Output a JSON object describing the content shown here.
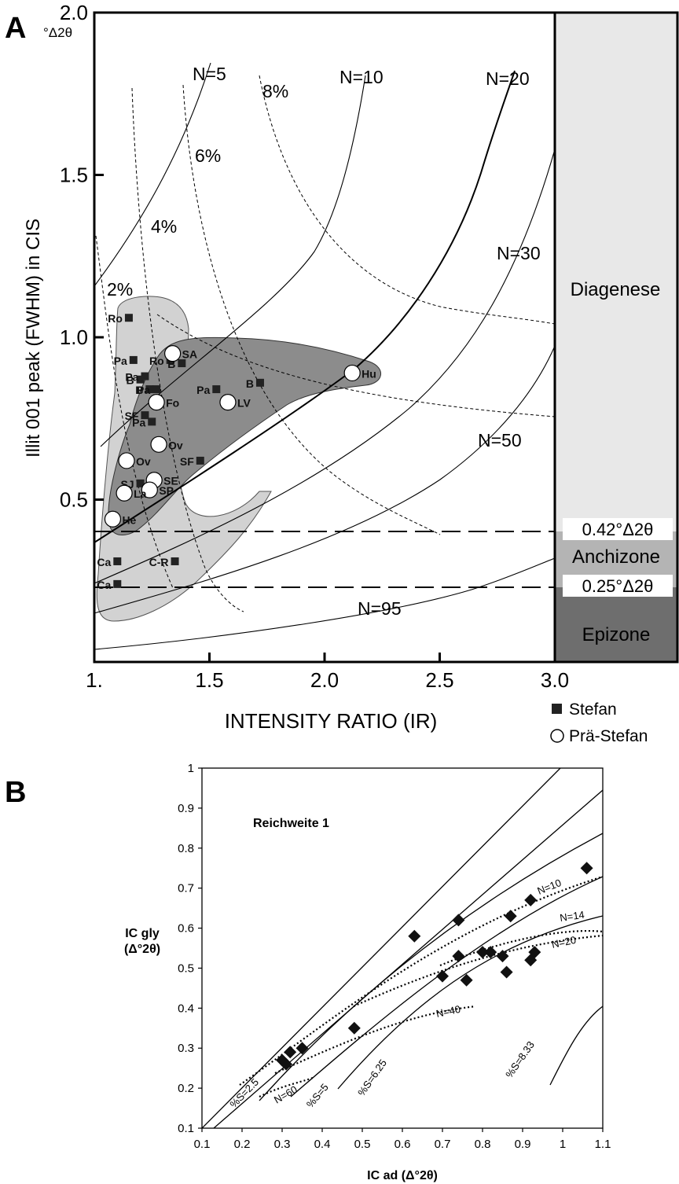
{
  "panel_a": {
    "letter": "A",
    "ylabel": "Illit 001 peak (FWHM) in CIS",
    "yunit": "°Δ2θ",
    "xlabel": "INTENSITY RATIO (IR)",
    "zones": [
      {
        "label": "Diagenese",
        "color": "#e8e8e8"
      },
      {
        "label": "Anchizone",
        "color": "#b4b4b4"
      },
      {
        "label": "Epizone",
        "color": "#6e6e6e"
      }
    ],
    "threshold_labels": [
      "0.42°Δ2θ",
      "0.25°Δ2θ"
    ],
    "curve_labels": [
      "N=5",
      "N=10",
      "N=20",
      "N=30",
      "N=50",
      "N=95"
    ],
    "percent_labels": [
      "2%",
      "4%",
      "6%",
      "8%"
    ],
    "legend": [
      {
        "symbol": "square",
        "label": "Stefan"
      },
      {
        "symbol": "circle",
        "label": "Prä-Stefan"
      }
    ]
  },
  "panel_b": {
    "letter": "B",
    "annotation": "Reichweite 1",
    "ylabel_line1": "IC gly",
    "ylabel_line2": "(Δ°2θ)",
    "xlabel": "IC ad (Δ°2θ)",
    "curve_labels": [
      "N=10",
      "N=14",
      "N=20",
      "N=40",
      "N=60",
      "%S=2.5",
      "%S=5",
      "%S=6.25",
      "%S=8.33"
    ]
  },
  "chart_data": [
    {
      "type": "scatter",
      "xlim": [
        1.0,
        3.0
      ],
      "ylim": [
        0.0,
        2.0
      ],
      "x_ticks": [
        "1.",
        "1.5",
        "2.0",
        "2.5",
        "3.0"
      ],
      "y_ticks": [
        "2.0",
        "1.5",
        "1.0",
        "0.5"
      ],
      "thresholds_y": [
        0.42,
        0.25
      ],
      "series": [
        {
          "name": "Stefan",
          "marker": "square",
          "points": [
            {
              "x": 1.15,
              "y": 1.06,
              "label": "Ro"
            },
            {
              "x": 1.17,
              "y": 0.93,
              "label": "Pa"
            },
            {
              "x": 1.2,
              "y": 0.87,
              "label": "B"
            },
            {
              "x": 1.22,
              "y": 0.88,
              "label": "Pa"
            },
            {
              "x": 1.24,
              "y": 0.84,
              "label": "B"
            },
            {
              "x": 1.27,
              "y": 0.84,
              "label": "Pa"
            },
            {
              "x": 1.33,
              "y": 0.93,
              "label": "Ro"
            },
            {
              "x": 1.38,
              "y": 0.92,
              "label": "B"
            },
            {
              "x": 1.53,
              "y": 0.84,
              "label": "Pa"
            },
            {
              "x": 1.72,
              "y": 0.86,
              "label": "B"
            },
            {
              "x": 1.22,
              "y": 0.76,
              "label": "SF"
            },
            {
              "x": 1.25,
              "y": 0.74,
              "label": "Pa"
            },
            {
              "x": 1.2,
              "y": 0.55,
              "label": "SJ"
            },
            {
              "x": 1.46,
              "y": 0.62,
              "label": "SF"
            },
            {
              "x": 1.1,
              "y": 0.31,
              "label": "Ca"
            },
            {
              "x": 1.35,
              "y": 0.31,
              "label": "C-R"
            },
            {
              "x": 1.1,
              "y": 0.24,
              "label": "Ca"
            }
          ]
        },
        {
          "name": "Prä-Stefan",
          "marker": "circle",
          "points": [
            {
              "x": 1.34,
              "y": 0.95,
              "label": "SA"
            },
            {
              "x": 1.27,
              "y": 0.8,
              "label": "Fo"
            },
            {
              "x": 1.28,
              "y": 0.67,
              "label": "Ov"
            },
            {
              "x": 1.14,
              "y": 0.62,
              "label": "Ov"
            },
            {
              "x": 1.26,
              "y": 0.56,
              "label": "SE"
            },
            {
              "x": 1.24,
              "y": 0.53,
              "label": "SP"
            },
            {
              "x": 1.13,
              "y": 0.52,
              "label": "La"
            },
            {
              "x": 1.08,
              "y": 0.44,
              "label": "He"
            },
            {
              "x": 1.58,
              "y": 0.8,
              "label": "LV"
            },
            {
              "x": 2.12,
              "y": 0.89,
              "label": "Hu"
            }
          ]
        }
      ]
    },
    {
      "type": "scatter",
      "xlim": [
        0.1,
        1.1
      ],
      "ylim": [
        0.1,
        1.0
      ],
      "x_ticks": [
        "0.1",
        "0.2",
        "0.3",
        "0.4",
        "0.5",
        "0.6",
        "0.7",
        "0.8",
        "0.9",
        "1",
        "1.1"
      ],
      "y_ticks": [
        "0.1",
        "0.2",
        "0.3",
        "0.4",
        "0.5",
        "0.6",
        "0.7",
        "0.8",
        "0.9",
        "1"
      ],
      "series": [
        {
          "marker": "diamond",
          "points": [
            {
              "x": 0.3,
              "y": 0.27
            },
            {
              "x": 0.31,
              "y": 0.26
            },
            {
              "x": 0.32,
              "y": 0.29
            },
            {
              "x": 0.35,
              "y": 0.3
            },
            {
              "x": 0.48,
              "y": 0.35
            },
            {
              "x": 0.63,
              "y": 0.58
            },
            {
              "x": 0.7,
              "y": 0.48
            },
            {
              "x": 0.74,
              "y": 0.62
            },
            {
              "x": 0.74,
              "y": 0.53
            },
            {
              "x": 0.76,
              "y": 0.47
            },
            {
              "x": 0.8,
              "y": 0.54
            },
            {
              "x": 0.82,
              "y": 0.54
            },
            {
              "x": 0.85,
              "y": 0.53
            },
            {
              "x": 0.86,
              "y": 0.49
            },
            {
              "x": 0.87,
              "y": 0.63
            },
            {
              "x": 0.92,
              "y": 0.67
            },
            {
              "x": 0.92,
              "y": 0.52
            },
            {
              "x": 0.93,
              "y": 0.54
            },
            {
              "x": 1.06,
              "y": 0.75
            }
          ]
        }
      ]
    }
  ]
}
